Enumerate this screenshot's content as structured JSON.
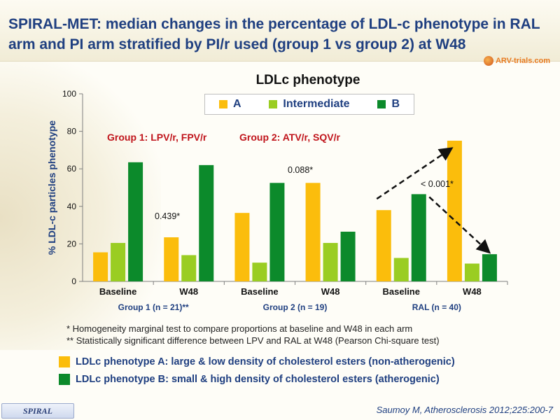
{
  "header": {
    "title": "SPIRAL-MET: median changes in the percentage of LDL-c phenotype in RAL arm and PI arm stratified by PI/r used (group 1 vs group 2) at W48",
    "brand": "ARV-trials.com"
  },
  "colors": {
    "A": "#fbbd0c",
    "Intermediate": "#9acd22",
    "B": "#0c8a2b",
    "title": "#1f3f80",
    "group_label": "#c0141b"
  },
  "chart_data": {
    "type": "bar",
    "title": "LDLc phenotype",
    "ylabel": "% LDL-c particles phenotype",
    "xlabel": "",
    "ylim": [
      0,
      100
    ],
    "yticks": [
      0,
      20,
      40,
      60,
      80,
      100
    ],
    "legend_position": "top",
    "grid": false,
    "categories": [
      "Baseline",
      "W48",
      "Baseline",
      "W48",
      "Baseline",
      "W48"
    ],
    "groups": [
      "Group 1 (n = 21)**",
      "Group 2 (n = 19)",
      "RAL (n = 40)"
    ],
    "series": [
      {
        "name": "A",
        "values": [
          15.5,
          23.5,
          36.5,
          52.5,
          38,
          75
        ]
      },
      {
        "name": "Intermediate",
        "values": [
          20.5,
          14,
          10,
          20.5,
          12.5,
          9.5
        ]
      },
      {
        "name": "B",
        "values": [
          63.5,
          62,
          52.5,
          26.5,
          46.5,
          14.5
        ]
      }
    ],
    "annotations": {
      "group1_label": "Group 1: LPV/r, FPV/r",
      "group2_label": "Group 2: ATV/r, SQV/r",
      "p_group1": "0.439*",
      "p_group2": "0.088*",
      "p_ral": "< 0.001*"
    }
  },
  "footnotes": [
    "* Homogeneity marginal test to compare proportions at baseline and W48 in each arm",
    "** Statistically significant difference  between LPV and RAL at W48 (Pearson Chi-square test)"
  ],
  "key": [
    {
      "text": "LDLc phenotype  A: large & low density of cholesterol esters (non-atherogenic)"
    },
    {
      "text": "LDLc phenotype  B: small & high density of cholesterol esters (atherogenic)"
    }
  ],
  "badge": "SPIRAL",
  "citation": "Saumoy M, Atherosclerosis 2012;225:200-7"
}
